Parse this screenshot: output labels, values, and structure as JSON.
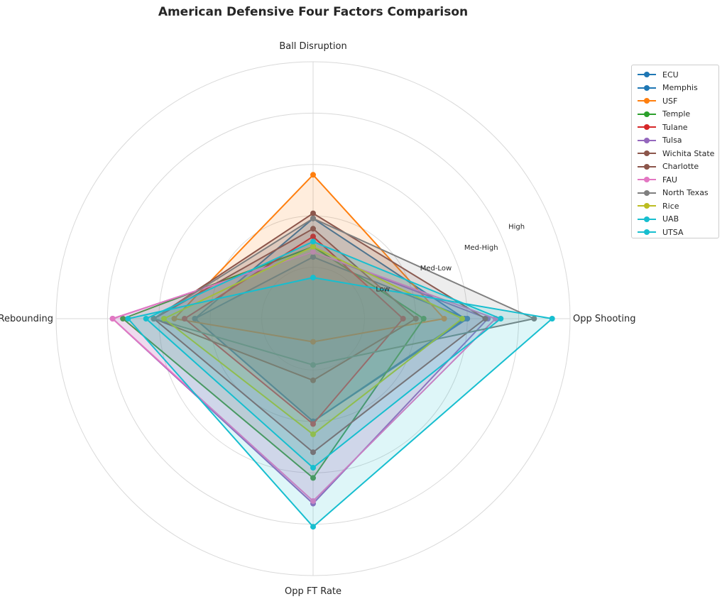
{
  "chart_data": {
    "type": "radar",
    "title": "American Defensive Four Factors Comparison",
    "axes": [
      "Ball Disruption",
      "Opp Shooting",
      "Opp FT Rate",
      "Def Rebounding"
    ],
    "ring_labels": [
      "Low",
      "Med-Low",
      "Med-High",
      "High"
    ],
    "rlim": [
      0,
      5
    ],
    "grid": true,
    "legend_position": "upper-right-outside",
    "series": [
      {
        "name": "ECU",
        "color": "#1f77b4",
        "values": [
          1.2,
          3.0,
          2.0,
          2.3
        ]
      },
      {
        "name": "Memphis",
        "color": "#1f77b4",
        "values": [
          1.95,
          2.95,
          2.0,
          2.3
        ]
      },
      {
        "name": "USF",
        "color": "#ff7f0e",
        "values": [
          2.8,
          2.55,
          0.45,
          2.7
        ]
      },
      {
        "name": "Temple",
        "color": "#2ca02c",
        "values": [
          1.4,
          2.15,
          3.1,
          3.7
        ]
      },
      {
        "name": "Tulane",
        "color": "#d62728",
        "values": [
          1.6,
          1.75,
          2.05,
          2.5
        ]
      },
      {
        "name": "Tulsa",
        "color": "#9467bd",
        "values": [
          1.3,
          3.4,
          3.6,
          3.9
        ]
      },
      {
        "name": "Wichita State",
        "color": "#8c564b",
        "values": [
          2.05,
          3.35,
          2.6,
          3.1
        ]
      },
      {
        "name": "Charlotte",
        "color": "#8c564b",
        "values": [
          1.75,
          2.0,
          1.2,
          3.1
        ]
      },
      {
        "name": "FAU",
        "color": "#e377c2",
        "values": [
          1.3,
          3.55,
          3.55,
          3.9
        ]
      },
      {
        "name": "North Texas",
        "color": "#7f7f7f",
        "values": [
          1.95,
          4.3,
          0.9,
          3.1
        ]
      },
      {
        "name": "Rice",
        "color": "#bcbd22",
        "values": [
          1.4,
          2.9,
          2.25,
          2.9
        ]
      },
      {
        "name": "UAB",
        "color": "#17becf",
        "values": [
          1.5,
          3.65,
          2.9,
          3.25
        ]
      },
      {
        "name": "UTSA",
        "color": "#17becf",
        "values": [
          0.8,
          4.65,
          4.05,
          3.6
        ]
      }
    ]
  }
}
